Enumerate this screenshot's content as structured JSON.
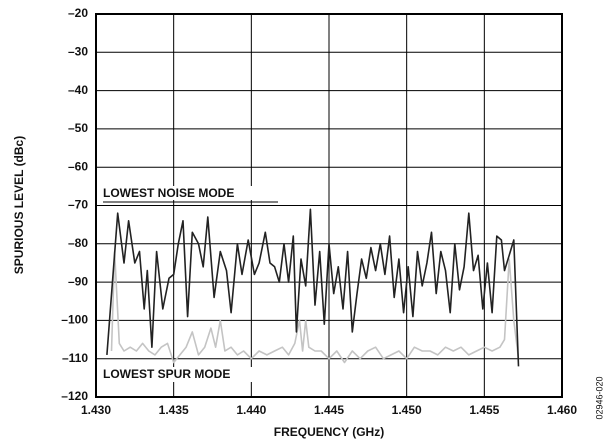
{
  "chart_data": {
    "type": "line",
    "xlabel": "FREQUENCY (GHz)",
    "ylabel": "SPURIOUS LEVEL (dBc)",
    "xlim": [
      1.43,
      1.46
    ],
    "ylim": [
      -120,
      -20
    ],
    "xticks": [
      {
        "value": 1.43,
        "label": "1.430"
      },
      {
        "value": 1.435,
        "label": "1.435"
      },
      {
        "value": 1.44,
        "label": "1.440"
      },
      {
        "value": 1.445,
        "label": "1.445"
      },
      {
        "value": 1.45,
        "label": "1.450"
      },
      {
        "value": 1.455,
        "label": "1.455"
      },
      {
        "value": 1.46,
        "label": "1.460"
      }
    ],
    "yticks": [
      {
        "value": -120,
        "label": "–120"
      },
      {
        "value": -110,
        "label": "–110"
      },
      {
        "value": -100,
        "label": "–100"
      },
      {
        "value": -90,
        "label": "–90"
      },
      {
        "value": -80,
        "label": "–80"
      },
      {
        "value": -70,
        "label": "–70"
      },
      {
        "value": -60,
        "label": "–60"
      },
      {
        "value": -50,
        "label": "–50"
      },
      {
        "value": -40,
        "label": "–40"
      },
      {
        "value": -30,
        "label": "–30"
      },
      {
        "value": -20,
        "label": "–20"
      }
    ],
    "grid": true,
    "annotations": [
      "02946-020"
    ],
    "series": [
      {
        "name": "LOWEST NOISE MODE",
        "color": "#222222",
        "x": [
          1.4307,
          1.4314,
          1.4318,
          1.4321,
          1.4325,
          1.4328,
          1.4331,
          1.4333,
          1.4336,
          1.4339,
          1.4343,
          1.4347,
          1.435,
          1.4353,
          1.4356,
          1.4359,
          1.4362,
          1.4366,
          1.4369,
          1.4372,
          1.4376,
          1.438,
          1.4384,
          1.4387,
          1.4391,
          1.4394,
          1.4398,
          1.4402,
          1.4405,
          1.4409,
          1.4412,
          1.4415,
          1.4418,
          1.4421,
          1.4424,
          1.4427,
          1.4429,
          1.4432,
          1.4435,
          1.4438,
          1.4441,
          1.4444,
          1.4447,
          1.445,
          1.4453,
          1.4456,
          1.4459,
          1.4462,
          1.4465,
          1.4468,
          1.4471,
          1.4474,
          1.4477,
          1.448,
          1.4483,
          1.4486,
          1.4489,
          1.4492,
          1.4495,
          1.4498,
          1.4501,
          1.4504,
          1.4507,
          1.451,
          1.4513,
          1.4516,
          1.4519,
          1.4522,
          1.4525,
          1.4528,
          1.4531,
          1.4534,
          1.4537,
          1.454,
          1.4543,
          1.4546,
          1.4549,
          1.4552,
          1.4555,
          1.4558,
          1.4561,
          1.4563,
          1.4566,
          1.4569,
          1.4572
        ],
        "values": [
          -109,
          -72,
          -85,
          -74,
          -85,
          -82,
          -97,
          -87,
          -107,
          -82,
          -97,
          -89,
          -88,
          -80,
          -74,
          -99,
          -77,
          -80,
          -86,
          -73,
          -94,
          -82,
          -87,
          -98,
          -80,
          -88,
          -79,
          -88,
          -85,
          -77,
          -85,
          -86,
          -90,
          -80,
          -90,
          -78,
          -103,
          -84,
          -91,
          -71,
          -96,
          -82,
          -101,
          -80,
          -93,
          -86,
          -97,
          -82,
          -103,
          -93,
          -84,
          -89,
          -81,
          -87,
          -80,
          -88,
          -78,
          -94,
          -84,
          -98,
          -86,
          -99,
          -82,
          -91,
          -85,
          -77,
          -93,
          -82,
          -87,
          -98,
          -80,
          -92,
          -86,
          -72,
          -87,
          -83,
          -97,
          -85,
          -98,
          -78,
          -79,
          -87,
          -83,
          -79,
          -112
        ]
      },
      {
        "name": "LOWEST SPUR MODE",
        "color": "#c4c4c4",
        "x": [
          1.431,
          1.4312,
          1.4315,
          1.4318,
          1.4322,
          1.4326,
          1.433,
          1.4334,
          1.4338,
          1.4342,
          1.4346,
          1.435,
          1.4354,
          1.4358,
          1.4362,
          1.4366,
          1.437,
          1.4374,
          1.4377,
          1.438,
          1.4383,
          1.4387,
          1.4391,
          1.4395,
          1.44,
          1.4405,
          1.441,
          1.4415,
          1.442,
          1.4424,
          1.4428,
          1.4431,
          1.4433,
          1.4435,
          1.4437,
          1.4441,
          1.4445,
          1.445,
          1.4455,
          1.446,
          1.4465,
          1.447,
          1.4475,
          1.448,
          1.4485,
          1.449,
          1.4495,
          1.45,
          1.4505,
          1.451,
          1.4515,
          1.452,
          1.4525,
          1.453,
          1.4535,
          1.454,
          1.4545,
          1.455,
          1.4555,
          1.456,
          1.4563,
          1.4566,
          1.4569,
          1.4572
        ],
        "values": [
          -108,
          -82,
          -106,
          -108,
          -107,
          -108,
          -106,
          -108,
          -109,
          -107,
          -106,
          -111,
          -109,
          -107,
          -103,
          -109,
          -107,
          -102,
          -107,
          -100,
          -108,
          -107,
          -109,
          -108,
          -110,
          -108,
          -109,
          -108,
          -107,
          -109,
          -106,
          -100,
          -108,
          -100,
          -107,
          -108,
          -108,
          -110,
          -108,
          -111,
          -108,
          -110,
          -108,
          -107,
          -110,
          -109,
          -108,
          -110,
          -107,
          -108,
          -108,
          -109,
          -107,
          -108,
          -107,
          -109,
          -108,
          -107,
          -108,
          -107,
          -105,
          -84,
          -100,
          -110
        ]
      }
    ]
  }
}
